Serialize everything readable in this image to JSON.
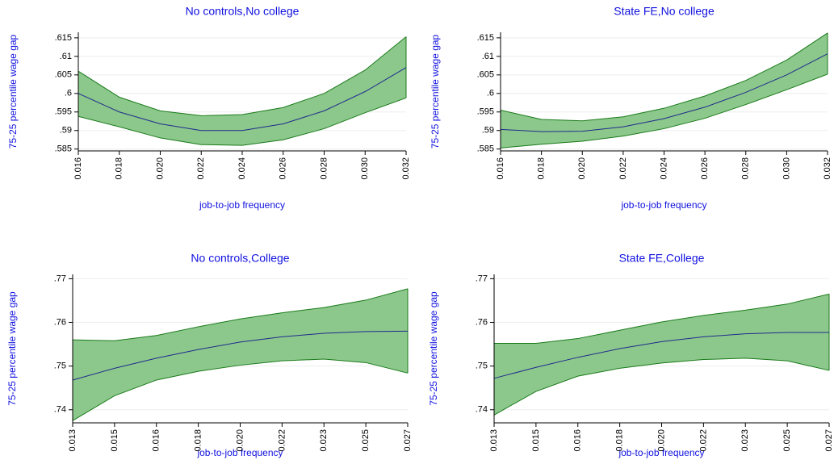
{
  "chart_data": [
    {
      "type": "line",
      "title": "No controls,No college",
      "xlabel": "job-to-job frequency",
      "ylabel": "75-25 percentile wage gap",
      "categories": [
        "0.016",
        "0.018",
        "0.020",
        "0.022",
        "0.024",
        "0.026",
        "0.028",
        "0.030",
        "0.032"
      ],
      "values": [
        0.6,
        0.595,
        0.5918,
        0.59,
        0.59,
        0.5918,
        0.5953,
        0.6005,
        0.607
      ],
      "upper": [
        0.606,
        0.599,
        0.5953,
        0.594,
        0.5943,
        0.5962,
        0.6,
        0.6063,
        0.6153
      ],
      "lower": [
        0.5938,
        0.591,
        0.588,
        0.5862,
        0.586,
        0.5875,
        0.5905,
        0.5948,
        0.5988
      ],
      "ylim": [
        0.5845,
        0.6165
      ],
      "yticks": [
        {
          "value": 0.585,
          "label": ".585"
        },
        {
          "value": 0.59,
          "label": ".59"
        },
        {
          "value": 0.595,
          "label": ".595"
        },
        {
          "value": 0.6,
          "label": ".6"
        },
        {
          "value": 0.605,
          "label": ".605"
        },
        {
          "value": 0.61,
          "label": ".61"
        },
        {
          "value": 0.615,
          "label": ".615"
        }
      ],
      "grid": true,
      "color": "#1f2a8c",
      "band_color": "#8cc88c",
      "band_edge": "#1a7a1a"
    },
    {
      "type": "line",
      "title": "State FE,No college",
      "xlabel": "job-to-job frequency",
      "ylabel": "75-25 percentile wage gap",
      "categories": [
        "0.016",
        "0.018",
        "0.020",
        "0.022",
        "0.024",
        "0.026",
        "0.028",
        "0.030",
        "0.032"
      ],
      "values": [
        0.5903,
        0.5897,
        0.5898,
        0.591,
        0.5932,
        0.5963,
        0.6003,
        0.605,
        0.6107
      ],
      "upper": [
        0.5955,
        0.593,
        0.5926,
        0.5937,
        0.596,
        0.5993,
        0.6035,
        0.609,
        0.6163
      ],
      "lower": [
        0.5853,
        0.5863,
        0.5871,
        0.5885,
        0.5905,
        0.5933,
        0.597,
        0.601,
        0.6052
      ],
      "ylim": [
        0.5845,
        0.6165
      ],
      "yticks": [
        {
          "value": 0.585,
          "label": ".585"
        },
        {
          "value": 0.59,
          "label": ".59"
        },
        {
          "value": 0.595,
          "label": ".595"
        },
        {
          "value": 0.6,
          "label": ".6"
        },
        {
          "value": 0.605,
          "label": ".605"
        },
        {
          "value": 0.61,
          "label": ".61"
        },
        {
          "value": 0.615,
          "label": ".615"
        }
      ],
      "grid": true,
      "color": "#1f2a8c",
      "band_color": "#8cc88c",
      "band_edge": "#1a7a1a"
    },
    {
      "type": "line",
      "title": "No controls,College",
      "xlabel": "job-to-job frequency",
      "ylabel": "75-25 percentile wage gap",
      "categories": [
        "0.013",
        "0.015",
        "0.016",
        "0.018",
        "0.020",
        "0.022",
        "0.023",
        "0.025",
        "0.027"
      ],
      "values": [
        0.7468,
        0.7495,
        0.7518,
        0.7538,
        0.7555,
        0.7567,
        0.7575,
        0.7579,
        0.758
      ],
      "upper": [
        0.756,
        0.7558,
        0.757,
        0.759,
        0.7608,
        0.7622,
        0.7634,
        0.7651,
        0.7677
      ],
      "lower": [
        0.7375,
        0.7432,
        0.7468,
        0.7488,
        0.7502,
        0.7512,
        0.7516,
        0.7508,
        0.7484
      ],
      "ylim": [
        0.737,
        0.771
      ],
      "yticks": [
        {
          "value": 0.74,
          "label": ".74"
        },
        {
          "value": 0.75,
          "label": ".75"
        },
        {
          "value": 0.76,
          "label": ".76"
        },
        {
          "value": 0.77,
          "label": ".77"
        }
      ],
      "grid": true,
      "color": "#1f2a8c",
      "band_color": "#8cc88c",
      "band_edge": "#1a7a1a"
    },
    {
      "type": "line",
      "title": "State FE,College",
      "xlabel": "job-to-job frequency",
      "ylabel": "75-25 percentile wage gap",
      "categories": [
        "0.013",
        "0.015",
        "0.016",
        "0.018",
        "0.020",
        "0.022",
        "0.023",
        "0.025",
        "0.027"
      ],
      "values": [
        0.7472,
        0.7497,
        0.752,
        0.754,
        0.7556,
        0.7567,
        0.7574,
        0.7577,
        0.7577
      ],
      "upper": [
        0.7552,
        0.7552,
        0.7563,
        0.7582,
        0.7601,
        0.7616,
        0.7628,
        0.7642,
        0.7665
      ],
      "lower": [
        0.7388,
        0.7442,
        0.7477,
        0.7495,
        0.7507,
        0.7515,
        0.7518,
        0.7512,
        0.749
      ],
      "ylim": [
        0.737,
        0.771
      ],
      "yticks": [
        {
          "value": 0.74,
          "label": ".74"
        },
        {
          "value": 0.75,
          "label": ".75"
        },
        {
          "value": 0.76,
          "label": ".76"
        },
        {
          "value": 0.77,
          "label": ".77"
        }
      ],
      "grid": true,
      "color": "#1f2a8c",
      "band_color": "#8cc88c",
      "band_edge": "#1a7a1a"
    }
  ]
}
